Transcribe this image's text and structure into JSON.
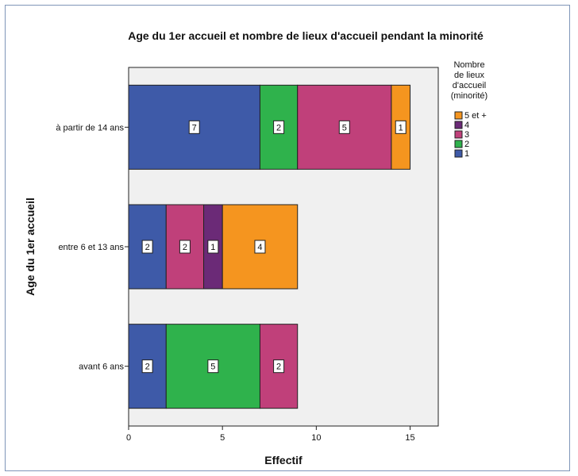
{
  "chart_data": {
    "type": "bar",
    "orientation": "horizontal",
    "stacked": true,
    "title": "Age du 1er accueil et nombre de lieux d'accueil pendant la minorité",
    "xlabel": "Effectif",
    "ylabel": "Age du 1er accueil",
    "categories": [
      "à partir de 14 ans",
      "entre 6 et 13 ans",
      "avant 6 ans"
    ],
    "xlim": [
      0,
      16.5
    ],
    "xticks": [
      0,
      5,
      10,
      15
    ],
    "grid": false,
    "legend_position": "top-right",
    "legend_title": [
      "Nombre",
      "de lieux",
      "d'accueil",
      "(minorité)"
    ],
    "legend_order": [
      "5 et +",
      "4",
      "3",
      "2",
      "1"
    ],
    "series": [
      {
        "name": "1",
        "color": "#3e5aa8",
        "values": [
          7,
          2,
          2
        ]
      },
      {
        "name": "2",
        "color": "#2fb24c",
        "values": [
          2,
          0,
          5
        ]
      },
      {
        "name": "3",
        "color": "#c0407a",
        "values": [
          5,
          2,
          2
        ]
      },
      {
        "name": "4",
        "color": "#6b2a77",
        "values": [
          0,
          1,
          0
        ]
      },
      {
        "name": "5 et +",
        "color": "#f5951f",
        "values": [
          1,
          4,
          0
        ]
      }
    ]
  }
}
